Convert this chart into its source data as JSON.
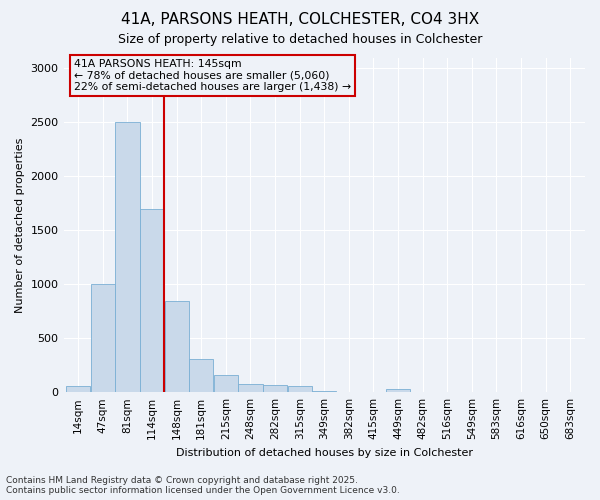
{
  "title1": "41A, PARSONS HEATH, COLCHESTER, CO4 3HX",
  "title2": "Size of property relative to detached houses in Colchester",
  "xlabel": "Distribution of detached houses by size in Colchester",
  "ylabel": "Number of detached properties",
  "categories": [
    "14sqm",
    "47sqm",
    "81sqm",
    "114sqm",
    "148sqm",
    "181sqm",
    "215sqm",
    "248sqm",
    "282sqm",
    "315sqm",
    "349sqm",
    "382sqm",
    "415sqm",
    "449sqm",
    "482sqm",
    "516sqm",
    "549sqm",
    "583sqm",
    "616sqm",
    "650sqm",
    "683sqm"
  ],
  "values": [
    55,
    1000,
    2500,
    1700,
    840,
    310,
    160,
    75,
    65,
    55,
    10,
    5,
    5,
    30,
    5,
    5,
    5,
    5,
    5,
    5,
    5
  ],
  "bar_color": "#c9d9ea",
  "bar_edge_color": "#7aafd4",
  "vline_color": "#cc0000",
  "vline_index": 3.5,
  "annotation_title": "41A PARSONS HEATH: 145sqm",
  "annotation_line1": "← 78% of detached houses are smaller (5,060)",
  "annotation_line2": "22% of semi-detached houses are larger (1,438) →",
  "annotation_box_edgecolor": "#cc0000",
  "ylim": [
    0,
    3100
  ],
  "yticks": [
    0,
    500,
    1000,
    1500,
    2000,
    2500,
    3000
  ],
  "footer1": "Contains HM Land Registry data © Crown copyright and database right 2025.",
  "footer2": "Contains public sector information licensed under the Open Government Licence v3.0.",
  "bg_color": "#eef2f8",
  "grid_color": "#ffffff",
  "title1_fontsize": 11,
  "title2_fontsize": 9,
  "tick_fontsize": 7.5,
  "axis_label_fontsize": 8,
  "footer_fontsize": 6.5
}
